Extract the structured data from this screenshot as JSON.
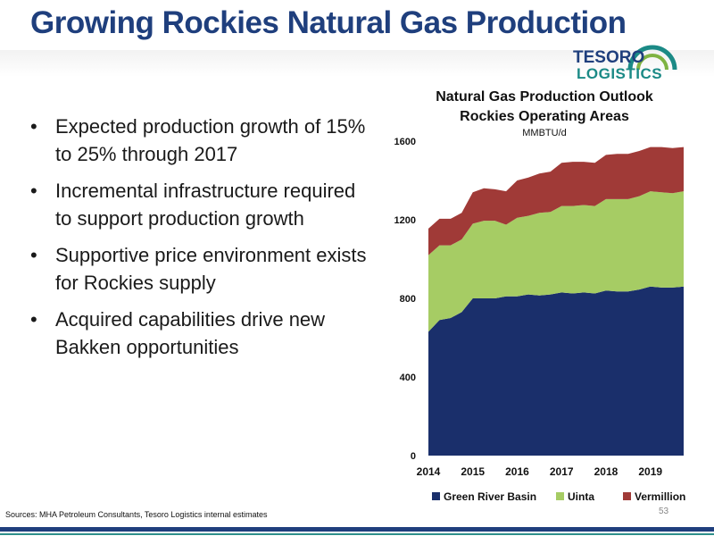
{
  "slide": {
    "title": "Growing Rockies Natural Gas Production",
    "bullets": [
      "Expected production growth of 15% to 25% through 2017",
      "Incremental infrastructure required to support production growth",
      "Supportive price environment exists for Rockies supply",
      "Acquired capabilities drive new Bakken opportunities"
    ],
    "sources": "Sources: MHA Petroleum Consultants, Tesoro Logistics internal estimates",
    "page_number": "53"
  },
  "logo": {
    "line1": "TESORO",
    "line2": "LOGISTICS"
  },
  "colors": {
    "title": "#1f3f7d",
    "green_river_basin": "#1a2f6b",
    "uinta": "#a6cc64",
    "vermillion": "#a03a37"
  },
  "chart_data": {
    "type": "area",
    "stacked": true,
    "title": "Natural Gas Production Outlook",
    "subtitle": "Rockies Operating Areas",
    "ylabel": "MMBTU/d",
    "ylim": [
      0,
      1600
    ],
    "yticks": [
      0,
      400,
      800,
      1200,
      1600
    ],
    "xticks": [
      "2014",
      "2015",
      "2016",
      "2017",
      "2018",
      "2019"
    ],
    "x": [
      2014.0,
      2014.25,
      2014.5,
      2014.75,
      2015.0,
      2015.25,
      2015.5,
      2015.75,
      2016.0,
      2016.25,
      2016.5,
      2016.75,
      2017.0,
      2017.25,
      2017.5,
      2017.75,
      2018.0,
      2018.25,
      2018.5,
      2018.75,
      2019.0,
      2019.25,
      2019.5,
      2019.75
    ],
    "xlim": [
      2014.0,
      2019.75
    ],
    "series": [
      {
        "name": "Green River Basin",
        "values": [
          630,
          690,
          700,
          730,
          800,
          800,
          800,
          810,
          810,
          820,
          815,
          820,
          830,
          825,
          830,
          825,
          840,
          835,
          835,
          845,
          860,
          855,
          855,
          860
        ]
      },
      {
        "name": "Uinta",
        "values": [
          390,
          380,
          370,
          370,
          380,
          395,
          395,
          365,
          400,
          400,
          420,
          420,
          440,
          445,
          445,
          445,
          465,
          470,
          470,
          475,
          485,
          485,
          480,
          485
        ]
      },
      {
        "name": "Vermillion",
        "values": [
          135,
          135,
          135,
          135,
          160,
          165,
          160,
          170,
          190,
          195,
          200,
          205,
          220,
          225,
          220,
          220,
          225,
          230,
          230,
          230,
          225,
          230,
          230,
          225
        ]
      }
    ],
    "legend": "bottom",
    "grid": false
  }
}
